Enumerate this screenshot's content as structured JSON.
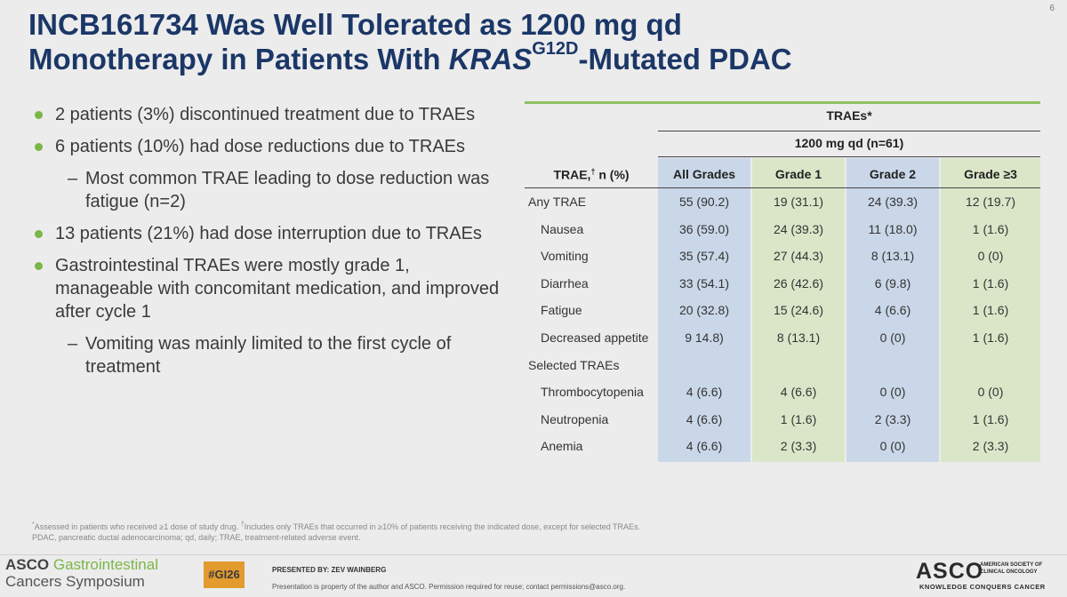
{
  "slide_number": "6",
  "title": {
    "line1": "INCB161734 Was Well Tolerated as 1200 mg qd",
    "line2_pre": "Monotherapy in Patients With ",
    "line2_gene": "KRAS",
    "line2_sup": "G12D",
    "line2_post": "-Mutated PDAC"
  },
  "bullets": [
    {
      "text": "2 patients (3%) discontinued treatment due to TRAEs",
      "sub": ""
    },
    {
      "text": "6 patients (10%) had dose reductions due to TRAEs",
      "sub": "Most common TRAE leading to dose reduction was fatigue (n=2)"
    },
    {
      "text": "13 patients (21%) had dose interruption due to TRAEs",
      "sub": ""
    },
    {
      "text": "Gastrointestinal TRAEs were mostly grade 1, manageable with concomitant medication, and improved after cycle 1",
      "sub": "Vomiting was mainly limited to the first cycle of treatment"
    }
  ],
  "bullet_dash": "–",
  "table": {
    "group_header": "TRAEs*",
    "dose_header": "1200 mg qd (n=61)",
    "row_header": "TRAE,",
    "row_header_sup": "†",
    "row_header_post": " n (%)",
    "columns": [
      "All Grades",
      "Grade 1",
      "Grade 2",
      "Grade ≥3"
    ],
    "rows": [
      {
        "label": "Any TRAE",
        "indent": false,
        "values": [
          "55 (90.2)",
          "19 (31.1)",
          "24 (39.3)",
          "12 (19.7)"
        ]
      },
      {
        "label": "Nausea",
        "indent": true,
        "values": [
          "36 (59.0)",
          "24 (39.3)",
          "11 (18.0)",
          "1 (1.6)"
        ]
      },
      {
        "label": "Vomiting",
        "indent": true,
        "values": [
          "35 (57.4)",
          "27 (44.3)",
          "8 (13.1)",
          "0 (0)"
        ]
      },
      {
        "label": "Diarrhea",
        "indent": true,
        "values": [
          "33 (54.1)",
          "26 (42.6)",
          "6 (9.8)",
          "1 (1.6)"
        ]
      },
      {
        "label": "Fatigue",
        "indent": true,
        "values": [
          "20 (32.8)",
          "15 (24.6)",
          "4 (6.6)",
          "1 (1.6)"
        ]
      },
      {
        "label": "Decreased appetite",
        "indent": true,
        "values": [
          "9 14.8)",
          "8 (13.1)",
          "0 (0)",
          "1 (1.6)"
        ]
      },
      {
        "label": "Selected TRAEs",
        "indent": false,
        "values": [
          "",
          "",
          "",
          ""
        ]
      },
      {
        "label": "Thrombocytopenia",
        "indent": true,
        "values": [
          "4 (6.6)",
          "4 (6.6)",
          "0 (0)",
          "0 (0)"
        ]
      },
      {
        "label": "Neutropenia",
        "indent": true,
        "values": [
          "4 (6.6)",
          "1 (1.6)",
          "2 (3.3)",
          "1 (1.6)"
        ]
      },
      {
        "label": "Anemia",
        "indent": true,
        "values": [
          "4 (6.6)",
          "2 (3.3)",
          "0 (0)",
          "2 (3.3)"
        ]
      }
    ]
  },
  "footnote": {
    "mark1": "*",
    "text1": "Assessed in patients who received ≥1 dose of study drug. ",
    "mark2": "†",
    "text2": "Includes only TRAEs that occurred in ≥10% of patients receiving the indicated dose, except for selected TRAEs.",
    "line2": "PDAC, pancreatic ductal adenocarcinoma; qd, daily; TRAE, treatment-related adverse event."
  },
  "footer": {
    "asco_word": "ASCO",
    "gi_word": "Gastrointestinal",
    "cancers_line": "Cancers Symposium",
    "hashtag": "#GI26",
    "presented_by": "PRESENTED BY: ZEV WAINBERG",
    "property": "Presentation is property of the author and ASCO. Permission required for reuse; contact permissions@asco.org.",
    "asco_logo": "ASCO",
    "asco_sub": "AMERICAN SOCIETY OF CLINICAL ONCOLOGY",
    "asco_tagline": "KNOWLEDGE CONQUERS CANCER"
  },
  "colors": {
    "title": "#1b3767",
    "bullet_dot": "#7ab648",
    "blue_col": "#c9d7e8",
    "green_col": "#dbe6c9",
    "hashtag_bg": "#e39a2f"
  }
}
